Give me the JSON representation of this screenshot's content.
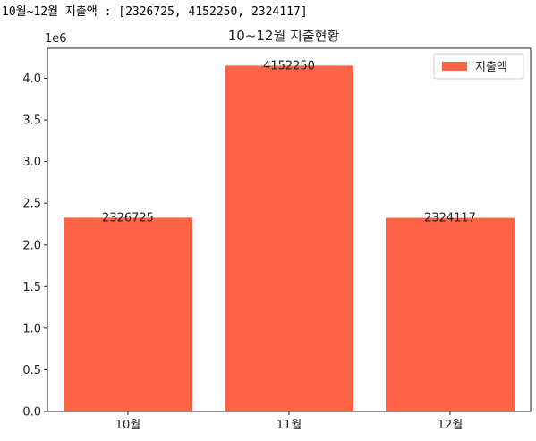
{
  "console": {
    "output_line": "10월~12월 지출액 : [2326725, 4152250, 2324117]"
  },
  "chart_data": {
    "type": "bar",
    "title": "10~12월 지출현황",
    "categories": [
      "10월",
      "11월",
      "12월"
    ],
    "series": [
      {
        "name": "지출액",
        "values": [
          2326725,
          4152250,
          2324117
        ],
        "color": "#ff6347"
      }
    ],
    "ylim": [
      0,
      4360000
    ],
    "yticks": [
      0,
      0.5,
      1.0,
      1.5,
      2.0,
      2.5,
      3.0,
      3.5,
      4.0
    ],
    "ytick_labels": [
      "0.0",
      "0.5",
      "1.0",
      "1.5",
      "2.0",
      "2.5",
      "3.0",
      "3.5",
      "4.0"
    ],
    "y_multiplier": 1000000,
    "y_offset_label": "1e6",
    "data_labels": [
      "2326725",
      "4152250",
      "2324117"
    ],
    "legend_placement": "top-right",
    "grid": false
  }
}
